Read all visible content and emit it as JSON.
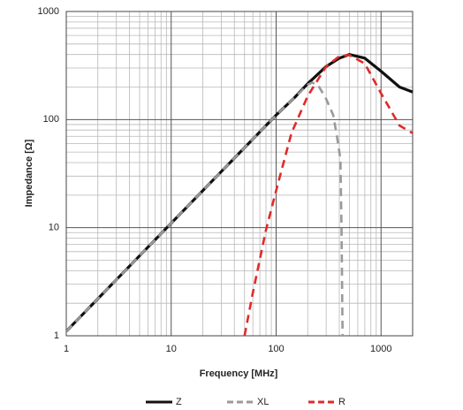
{
  "chart_data": {
    "type": "line",
    "x_label": "Frequency [MHz]",
    "y_label": "Impedance [Ω]",
    "log_x": true,
    "log_y": true,
    "grid": true,
    "minor_grid": true,
    "legend": "bottom",
    "xlim": [
      1,
      2000
    ],
    "ylim": [
      1,
      1000
    ],
    "xticks": [
      1,
      10,
      100,
      1000
    ],
    "yticks": [
      1,
      10,
      100,
      1000
    ],
    "series": [
      {
        "name": "Z",
        "color": "#111111",
        "line_style": "solid",
        "x": [
          1,
          2,
          5,
          10,
          20,
          50,
          100,
          150,
          200,
          300,
          400,
          500,
          700,
          1000,
          1500,
          2000
        ],
        "values": [
          1.1,
          2.2,
          5.5,
          11,
          22,
          55,
          110,
          160,
          215,
          310,
          370,
          400,
          370,
          280,
          200,
          180
        ]
      },
      {
        "name": "XL",
        "color": "#9a9a9a",
        "line_style": "dashed",
        "x": [
          1,
          2,
          5,
          10,
          20,
          50,
          100,
          150,
          200,
          220,
          250,
          300,
          350,
          380,
          410,
          420,
          430
        ],
        "values": [
          1.1,
          2.2,
          5.5,
          11,
          22,
          55,
          110,
          160,
          210,
          220,
          210,
          155,
          110,
          70,
          43,
          10,
          1
        ]
      },
      {
        "name": "R",
        "color": "#e02a2a",
        "line_style": "dashed",
        "x": [
          50,
          60,
          80,
          100,
          140,
          200,
          300,
          400,
          500,
          700,
          1000,
          1500,
          2000
        ],
        "values": [
          1,
          2.5,
          9.5,
          22,
          75,
          165,
          310,
          385,
          395,
          330,
          175,
          88,
          75
        ]
      }
    ]
  }
}
